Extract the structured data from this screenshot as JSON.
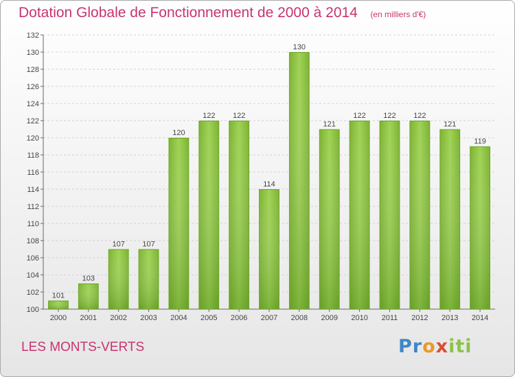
{
  "header": {
    "title": "Dotation Globale de Fonctionnement de 2000 à 2014",
    "unit": "(en milliers d'€)"
  },
  "footer": {
    "place": "LES MONTS-VERTS",
    "logo_text": "Proxiti"
  },
  "colors": {
    "title": "#c8336f",
    "bar_light": "#9fd255",
    "bar_dark": "#5e9e1c"
  },
  "chart_data": {
    "type": "bar",
    "categories": [
      "2000",
      "2001",
      "2002",
      "2003",
      "2004",
      "2005",
      "2006",
      "2007",
      "2008",
      "2009",
      "2010",
      "2011",
      "2012",
      "2013",
      "2014"
    ],
    "values": [
      101,
      103,
      107,
      107,
      120,
      122,
      122,
      114,
      130,
      121,
      122,
      122,
      122,
      121,
      119
    ],
    "data_labels": [
      "101",
      "103",
      "107",
      "107",
      "120",
      "122",
      "122",
      "114",
      "130",
      "121",
      "122",
      "122",
      "122",
      "121",
      "119"
    ],
    "ylim": [
      100,
      132
    ],
    "yticks": [
      100,
      102,
      104,
      106,
      108,
      110,
      112,
      114,
      116,
      118,
      120,
      122,
      124,
      126,
      128,
      130,
      132
    ],
    "ytick_labels": [
      "100",
      "102",
      "104",
      "106",
      "108",
      "110",
      "112",
      "114",
      "116",
      "118",
      "120",
      "122",
      "124",
      "126",
      "128",
      "130",
      "132"
    ],
    "grid": true,
    "legend": "none"
  }
}
